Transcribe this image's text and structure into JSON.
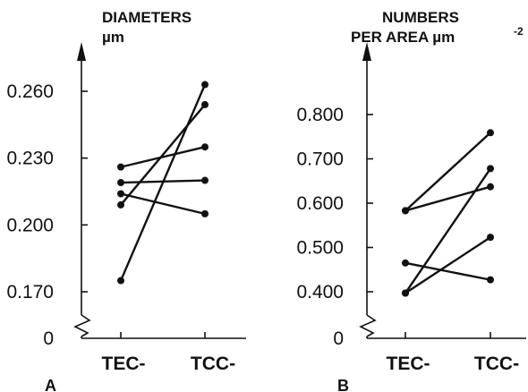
{
  "chart_data": [
    {
      "type": "line",
      "panel_label": "A",
      "title_lines": [
        "DIAMETERS",
        "µm"
      ],
      "categories": [
        "TEC-",
        "TCC-"
      ],
      "y_ticks": [
        "0.260",
        "0.230",
        "0.200",
        "0.170"
      ],
      "y_tick_values": [
        0.26,
        0.23,
        0.2,
        0.17
      ],
      "y_zero_label": "0",
      "axis_break": true,
      "ylim": [
        0.155,
        0.275
      ],
      "series": [
        {
          "values": [
            0.175,
            0.263
          ]
        },
        {
          "values": [
            0.209,
            0.254
          ]
        },
        {
          "values": [
            0.226,
            0.235
          ]
        },
        {
          "values": [
            0.219,
            0.22
          ]
        },
        {
          "values": [
            0.214,
            0.205
          ]
        }
      ]
    },
    {
      "type": "line",
      "panel_label": "B",
      "title_lines": [
        "NUMBERS",
        "PER AREA µm",
        "-2"
      ],
      "categories": [
        "TEC-",
        "TCC-"
      ],
      "y_ticks": [
        "0.800",
        "0.700",
        "0.600",
        "0.500",
        "0.400"
      ],
      "y_tick_values": [
        0.8,
        0.7,
        0.6,
        0.5,
        0.4
      ],
      "y_zero_label": "0",
      "axis_break": true,
      "ylim": [
        0.33,
        0.87
      ],
      "series": [
        {
          "values": [
            0.583,
            0.759
          ]
        },
        {
          "values": [
            0.583,
            0.637
          ]
        },
        {
          "values": [
            0.397,
            0.678
          ]
        },
        {
          "values": [
            0.397,
            0.523
          ]
        },
        {
          "values": [
            0.465,
            0.427
          ]
        }
      ]
    }
  ]
}
